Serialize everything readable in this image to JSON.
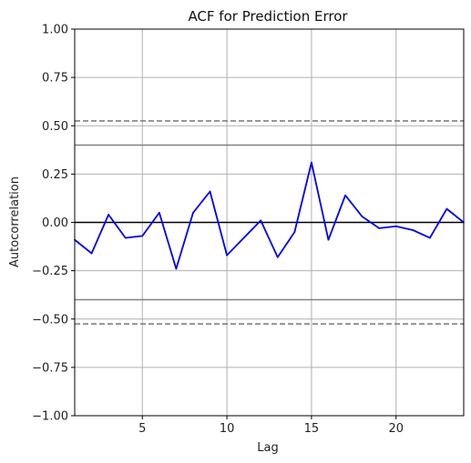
{
  "chart_data": {
    "type": "line",
    "title": "ACF for Prediction Error",
    "xlabel": "Lag",
    "ylabel": "Autocorrelation",
    "xlim": [
      1,
      24
    ],
    "ylim": [
      -1.0,
      1.0
    ],
    "x_ticks": [
      5,
      10,
      15,
      20
    ],
    "x_tick_labels": [
      "5",
      "10",
      "15",
      "20"
    ],
    "y_ticks": [
      -1.0,
      -0.75,
      -0.5,
      -0.25,
      0.0,
      0.25,
      0.5,
      0.75,
      1.0
    ],
    "y_tick_labels": [
      "−1.00",
      "−0.75",
      "−0.50",
      "−0.25",
      "0.00",
      "0.25",
      "0.50",
      "0.75",
      "1.00"
    ],
    "grid": true,
    "series": [
      {
        "color": "#0000ee",
        "x": [
          1,
          2,
          3,
          4,
          5,
          6,
          7,
          8,
          9,
          10,
          11,
          12,
          13,
          14,
          15,
          16,
          17,
          18,
          19,
          20,
          21,
          22,
          23,
          24
        ],
        "values": [
          -0.09,
          -0.16,
          0.04,
          -0.08,
          -0.07,
          0.05,
          -0.24,
          0.05,
          0.16,
          -0.17,
          -0.08,
          0.01,
          -0.18,
          -0.05,
          0.31,
          -0.09,
          0.14,
          0.03,
          -0.03,
          -0.02,
          -0.04,
          -0.08,
          0.07,
          0.0
        ]
      }
    ],
    "reference_lines": [
      {
        "y": 0.0,
        "style": "solid",
        "color": "#000000"
      },
      {
        "y": 0.4,
        "style": "solid",
        "color": "#808080"
      },
      {
        "y": -0.4,
        "style": "solid",
        "color": "#808080"
      },
      {
        "y": 0.525,
        "style": "dashed",
        "color": "#808080"
      },
      {
        "y": -0.525,
        "style": "dashed",
        "color": "#808080"
      }
    ]
  }
}
